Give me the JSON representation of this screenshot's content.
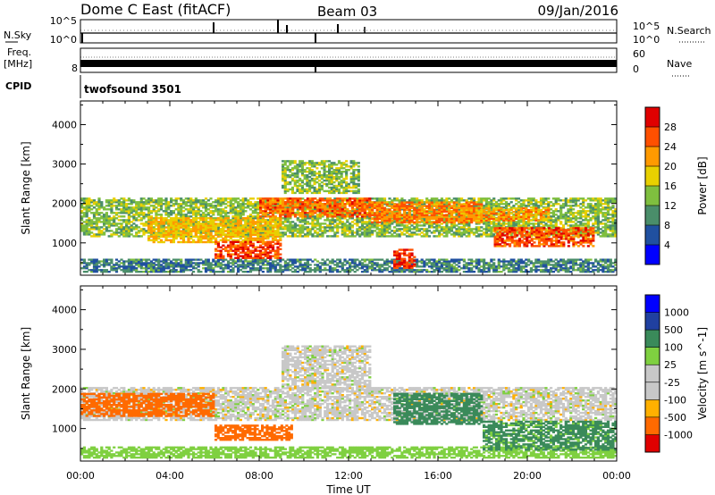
{
  "header": {
    "title": "Dome C East (fitACF)",
    "beam": "Beam 03",
    "date": "09/Jan/2016"
  },
  "strips": {
    "nsky_label": "N.Sky",
    "nsky_top": "10^5",
    "nsky_bottom": "10^0",
    "nsearch_label": "N.Search",
    "nsearch_top": "10^5",
    "nsearch_bottom": "10^0",
    "freq_label": "Freq.",
    "freq_unit": "[MHz]",
    "freq_tick": "8",
    "nave_label": "Nave",
    "nave_top": "60",
    "nave_bottom": "0",
    "cpid_label": "CPID",
    "cpid_value": "twofsound 3501"
  },
  "colors": {
    "power_scale": [
      "#0000ff",
      "#2050a0",
      "#4a8e6a",
      "#7fbf3f",
      "#e8d000",
      "#ff9a00",
      "#ff5000",
      "#e00000"
    ],
    "velocity_scale": [
      "#e00000",
      "#ff6a00",
      "#ffb000",
      "#c8c8c8",
      "#c8c8c8",
      "#7fd040",
      "#3a8a5a",
      "#2040a0",
      "#0000ff"
    ],
    "ground_scatter": "#c8c8c8"
  },
  "chart_data": [
    {
      "type": "heatmap",
      "name": "power",
      "xlabel": "Time UT",
      "ylabel": "Slant Range [km]",
      "x_ticks": [
        "00:00",
        "04:00",
        "08:00",
        "12:00",
        "16:00",
        "20:00",
        "00:00"
      ],
      "xlim_hours": [
        0,
        24
      ],
      "y_ticks": [
        1000,
        2000,
        3000,
        4000
      ],
      "ylim": [
        180,
        4600
      ],
      "colorbar": {
        "label": "Power [dB]",
        "ticks": [
          4,
          8,
          12,
          16,
          20,
          24,
          28
        ],
        "range": [
          0,
          32
        ]
      },
      "regions": [
        {
          "t0": 0.0,
          "t1": 24.0,
          "r0": 1150,
          "r1": 2150,
          "value": 14
        },
        {
          "t0": 0.0,
          "t1": 24.0,
          "r0": 250,
          "r1": 600,
          "value": 9
        },
        {
          "t0": 3.0,
          "t1": 9.0,
          "r0": 1000,
          "r1": 1650,
          "value": 20
        },
        {
          "t0": 6.0,
          "t1": 9.0,
          "r0": 600,
          "r1": 1050,
          "value": 27
        },
        {
          "t0": 8.0,
          "t1": 13.0,
          "r0": 1650,
          "r1": 2150,
          "value": 25
        },
        {
          "t0": 9.0,
          "t1": 12.5,
          "r0": 2250,
          "r1": 3100,
          "value": 14
        },
        {
          "t0": 13.0,
          "t1": 18.0,
          "r0": 1500,
          "r1": 2050,
          "value": 24
        },
        {
          "t0": 14.0,
          "t1": 15.0,
          "r0": 350,
          "r1": 850,
          "value": 28
        },
        {
          "t0": 18.5,
          "t1": 23.0,
          "r0": 900,
          "r1": 1400,
          "value": 26
        },
        {
          "t0": 17.0,
          "t1": 21.0,
          "r0": 1550,
          "r1": 1900,
          "value": 22
        }
      ]
    },
    {
      "type": "heatmap",
      "name": "velocity",
      "xlabel": "Time UT",
      "ylabel": "Slant Range [km]",
      "x_ticks": [
        "00:00",
        "04:00",
        "08:00",
        "12:00",
        "16:00",
        "20:00",
        "00:00"
      ],
      "xlim_hours": [
        0,
        24
      ],
      "y_ticks": [
        1000,
        2000,
        3000,
        4000
      ],
      "ylim": [
        180,
        4600
      ],
      "colorbar": {
        "label": "Velocity [m s^-1]",
        "ticks": [
          1000,
          500,
          100,
          25,
          -25,
          -100,
          -500,
          -1000
        ]
      },
      "regions": [
        {
          "t0": 0.0,
          "t1": 24.0,
          "r0": 1200,
          "r1": 2050,
          "value": 0
        },
        {
          "t0": 9.0,
          "t1": 13.0,
          "r0": 2000,
          "r1": 3100,
          "value": 0
        },
        {
          "t0": 0.0,
          "t1": 6.0,
          "r0": 1300,
          "r1": 1900,
          "value": -150
        },
        {
          "t0": 6.0,
          "t1": 9.5,
          "r0": 700,
          "r1": 1100,
          "value": -200
        },
        {
          "t0": 14.0,
          "t1": 18.0,
          "r0": 1100,
          "r1": 1900,
          "value": 150
        },
        {
          "t0": 0.0,
          "t1": 24.0,
          "r0": 250,
          "r1": 550,
          "value": 60
        },
        {
          "t0": 18.0,
          "t1": 24.0,
          "r0": 450,
          "r1": 1200,
          "value": 120
        }
      ]
    }
  ]
}
